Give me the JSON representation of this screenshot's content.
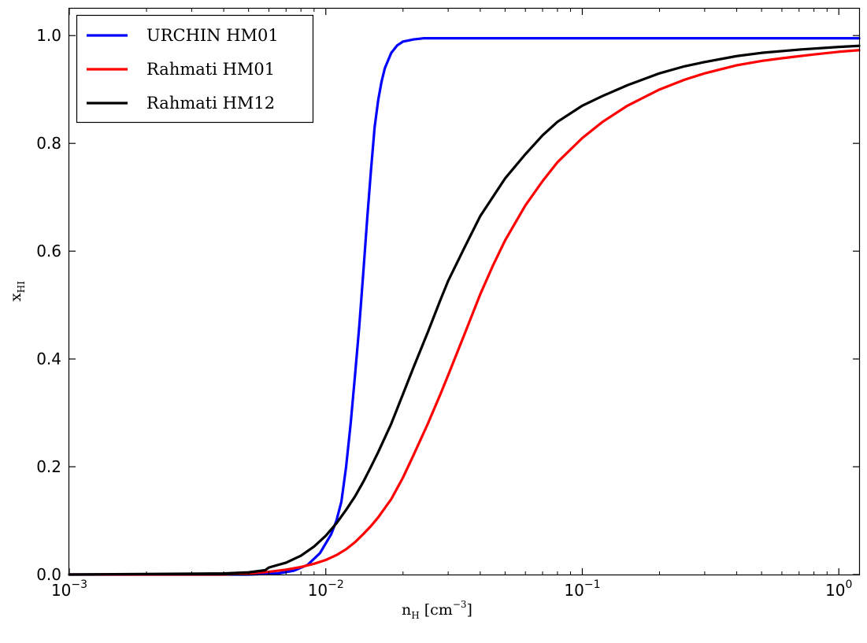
{
  "chart_data": {
    "type": "line",
    "xscale": "log",
    "xlim": [
      0.001,
      1.2
    ],
    "ylim": [
      0.0,
      1.05
    ],
    "grid": false,
    "legend_position": "top-left",
    "xlabel": {
      "base": "n",
      "sub": "H",
      "unit_open": "[cm",
      "unit_sup": "−3",
      "unit_close": "]"
    },
    "ylabel": {
      "base": "x",
      "sub": "HI"
    },
    "x_ticks": [
      {
        "value": 0.001,
        "base": "10",
        "exp": "−3"
      },
      {
        "value": 0.01,
        "base": "10",
        "exp": "−2"
      },
      {
        "value": 0.1,
        "base": "10",
        "exp": "−1"
      },
      {
        "value": 1,
        "base": "10",
        "exp": "0"
      }
    ],
    "y_ticks": [
      {
        "value": 0.0,
        "label": "0.0"
      },
      {
        "value": 0.2,
        "label": "0.2"
      },
      {
        "value": 0.4,
        "label": "0.4"
      },
      {
        "value": 0.6,
        "label": "0.6"
      },
      {
        "value": 0.8,
        "label": "0.8"
      },
      {
        "value": 1.0,
        "label": "1.0"
      }
    ],
    "series": [
      {
        "name": "URCHIN HM01",
        "color": "#0000ff",
        "x": [
          0.001,
          0.005,
          0.0065,
          0.0075,
          0.0085,
          0.0095,
          0.0105,
          0.011,
          0.0115,
          0.012,
          0.0125,
          0.013,
          0.0135,
          0.014,
          0.0145,
          0.015,
          0.0155,
          0.016,
          0.0165,
          0.017,
          0.018,
          0.019,
          0.02,
          0.022,
          0.024,
          0.027,
          0.03,
          0.05,
          0.1,
          1.2
        ],
        "y": [
          0.0,
          0.0,
          0.002,
          0.007,
          0.018,
          0.04,
          0.075,
          0.1,
          0.135,
          0.2,
          0.28,
          0.37,
          0.46,
          0.56,
          0.66,
          0.75,
          0.83,
          0.88,
          0.915,
          0.94,
          0.968,
          0.982,
          0.989,
          0.993,
          0.995,
          0.995,
          0.995,
          0.995,
          0.995,
          0.995
        ]
      },
      {
        "name": "Rahmati HM01",
        "color": "#ff0000",
        "x": [
          0.001,
          0.004,
          0.005,
          0.006,
          0.007,
          0.008,
          0.009,
          0.01,
          0.011,
          0.012,
          0.013,
          0.014,
          0.015,
          0.016,
          0.018,
          0.02,
          0.022,
          0.025,
          0.028,
          0.03,
          0.035,
          0.04,
          0.045,
          0.05,
          0.06,
          0.07,
          0.08,
          0.1,
          0.12,
          0.15,
          0.2,
          0.25,
          0.3,
          0.4,
          0.5,
          0.6,
          0.8,
          1.0,
          1.2
        ],
        "y": [
          0.0,
          0.0,
          0.002,
          0.005,
          0.009,
          0.014,
          0.02,
          0.027,
          0.036,
          0.047,
          0.06,
          0.075,
          0.09,
          0.106,
          0.14,
          0.18,
          0.222,
          0.28,
          0.335,
          0.37,
          0.45,
          0.52,
          0.575,
          0.62,
          0.685,
          0.73,
          0.765,
          0.81,
          0.84,
          0.87,
          0.9,
          0.918,
          0.93,
          0.945,
          0.953,
          0.958,
          0.965,
          0.97,
          0.973
        ]
      },
      {
        "name": "Rahmati HM12",
        "color": "#000000",
        "x": [
          0.001,
          0.004,
          0.005,
          0.0058,
          0.006,
          0.0062,
          0.007,
          0.008,
          0.009,
          0.01,
          0.011,
          0.012,
          0.013,
          0.014,
          0.015,
          0.016,
          0.018,
          0.02,
          0.022,
          0.025,
          0.028,
          0.03,
          0.035,
          0.04,
          0.05,
          0.06,
          0.07,
          0.08,
          0.1,
          0.12,
          0.15,
          0.2,
          0.25,
          0.3,
          0.4,
          0.5,
          0.7,
          1.0,
          1.2
        ],
        "y": [
          0.0,
          0.002,
          0.004,
          0.008,
          0.013,
          0.015,
          0.022,
          0.035,
          0.052,
          0.072,
          0.095,
          0.12,
          0.145,
          0.172,
          0.2,
          0.227,
          0.28,
          0.335,
          0.385,
          0.45,
          0.51,
          0.545,
          0.61,
          0.665,
          0.735,
          0.78,
          0.815,
          0.84,
          0.87,
          0.888,
          0.908,
          0.93,
          0.943,
          0.951,
          0.962,
          0.968,
          0.974,
          0.979,
          0.981
        ]
      }
    ]
  }
}
